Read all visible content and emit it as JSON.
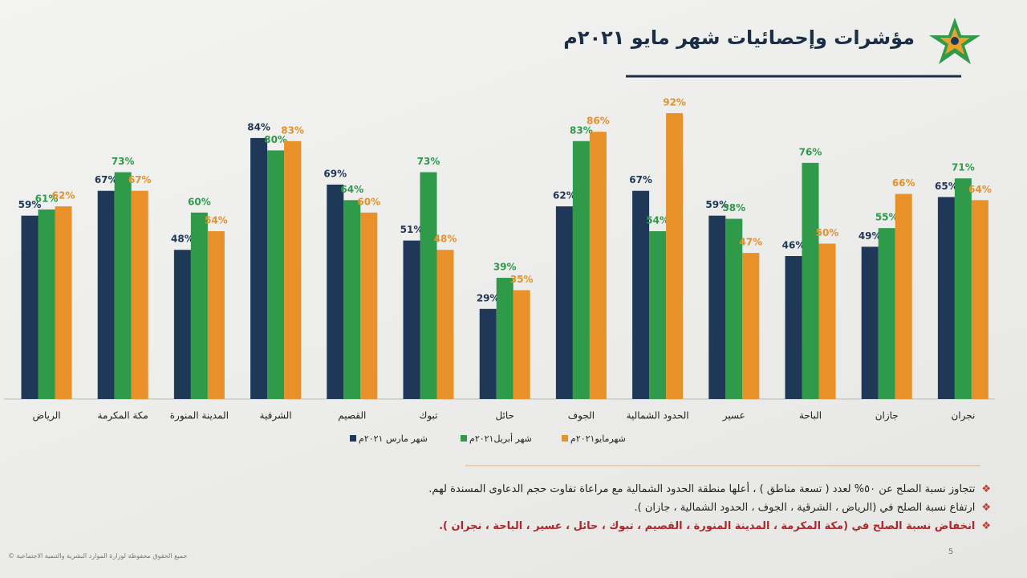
{
  "chart_data": {
    "type": "bar",
    "title": "مؤشرات وإحصائيات شهر مايو ٢٠٢١م",
    "categories": [
      "الرياض",
      "مكة المكرمة",
      "المدينة المنورة",
      "الشرقية",
      "القصيم",
      "تبوك",
      "حائل",
      "الجوف",
      "الحدود الشمالية",
      "عسير",
      "الباحة",
      "جازان",
      "نجران"
    ],
    "series": [
      {
        "name": "شهر مارس ٢٠٢١م",
        "color": "#1f3857",
        "values": [
          59,
          67,
          48,
          84,
          69,
          51,
          29,
          62,
          67,
          59,
          46,
          49,
          65
        ],
        "value_labels": [
          "59%",
          "67%",
          "48%",
          "84%",
          "69%",
          "51%",
          "29%",
          "62%",
          "67%",
          "59%",
          "46%",
          "49%",
          "65%"
        ]
      },
      {
        "name": "شهر أبريل٢٠٢١م",
        "color": "#2e9a4a",
        "values": [
          61,
          73,
          60,
          80,
          64,
          73,
          39,
          83,
          54,
          58,
          76,
          55,
          71
        ],
        "value_labels": [
          "61%",
          "73%",
          "60%",
          "80%",
          "64%",
          "73%",
          "39%",
          "83%",
          "54%",
          "58%",
          "76%",
          "55%",
          "71%"
        ]
      },
      {
        "name": "شهرمايو٢٠٢١م",
        "color": "#e8912a",
        "values": [
          62,
          67,
          54,
          83,
          60,
          48,
          35,
          86,
          92,
          47,
          50,
          66,
          64
        ],
        "value_labels": [
          "62%",
          "67%",
          "54%",
          "83%",
          "60%",
          "48%",
          "35%",
          "86%",
          "92%",
          "47%",
          "50%",
          "66%",
          "64%"
        ]
      }
    ]
  },
  "notes": [
    "تتجاوز نسبة الصلح عن ٥٠% لعدد ( تسعة مناطق ) ، أعلها منطقة الحدود الشمالية مع مراعاة تفاوت حجم الدعاوى المسندة لهم.",
    "ارتفاع نسبة الصلح في (الرياض ، الشرقية ، الجوف ، الحدود الشمالية ، جازان ).",
    "انخفاض نسبة الصلح في (مكة المكرمة ، المدينة المنورة ، القصيم ، تبوك ، حائل ، عسير ، الباحة ، نجران )."
  ],
  "footer": {
    "copyright": "جميع الحقوق محفوظة لوزارة الموارد البشرية والتنمية الاجتماعية ©",
    "page": "5"
  }
}
